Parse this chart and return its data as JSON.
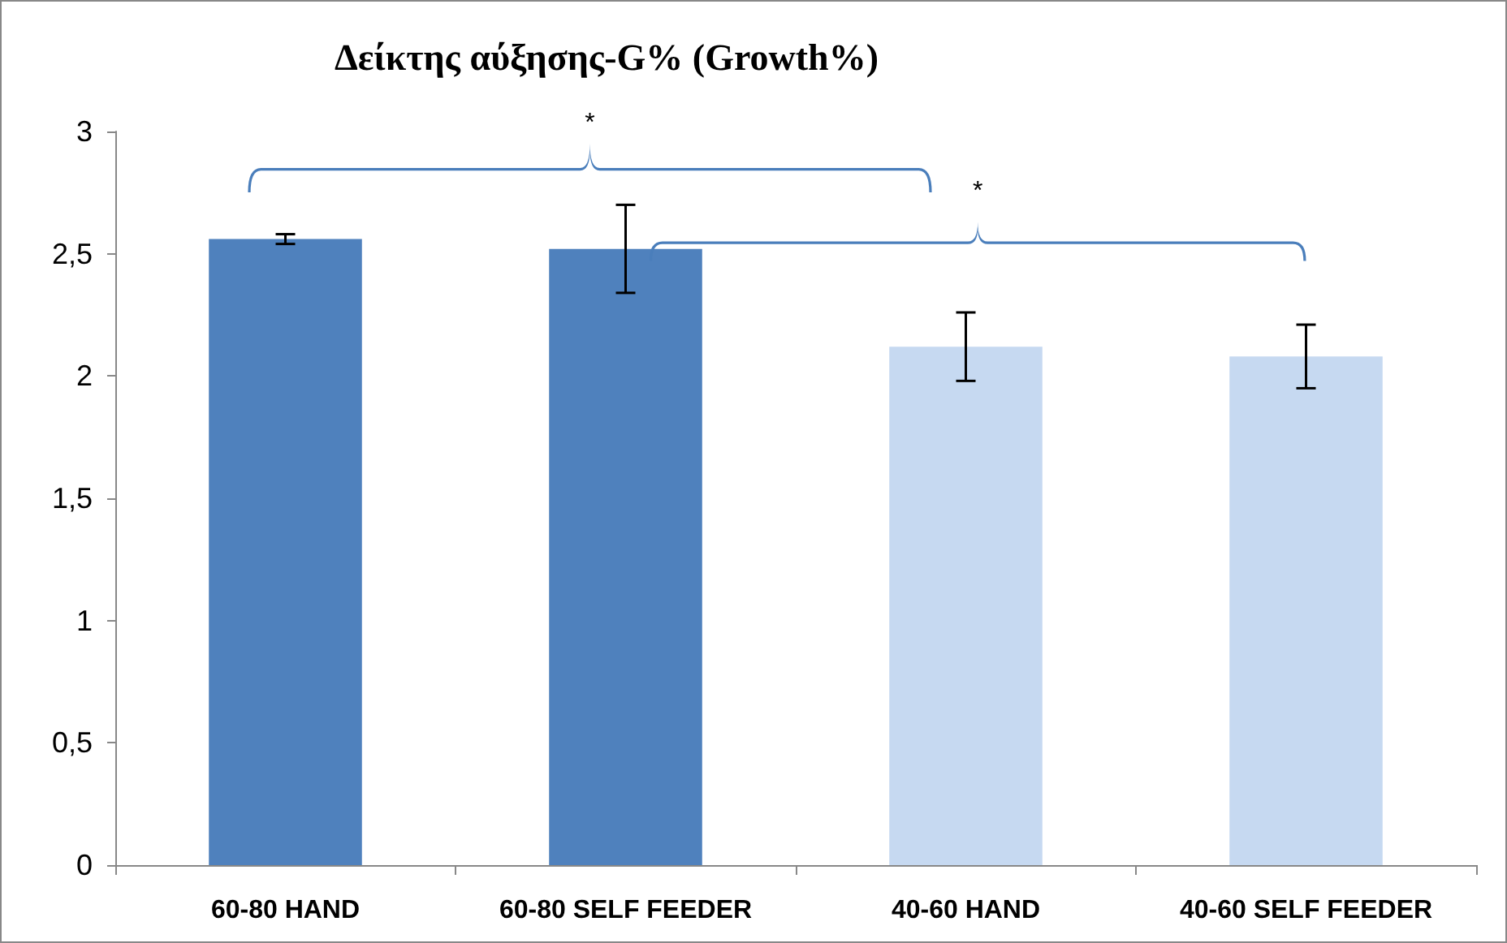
{
  "chart_data": {
    "type": "bar",
    "title": "Δείκτης αύξησης-G% (Growth%)",
    "categories": [
      "60-80 HAND",
      "60-80 SELF FEEDER",
      "40-60 HAND",
      "40-60 SELF FEEDER"
    ],
    "values": [
      2.56,
      2.52,
      2.12,
      2.08
    ],
    "errors": [
      0.02,
      0.18,
      0.14,
      0.13
    ],
    "colors": [
      "#4f81bd",
      "#4f81bd",
      "#c6d9f1",
      "#c6d9f1"
    ],
    "ylim": [
      0,
      3
    ],
    "yticks": [
      {
        "value": 0,
        "label": "0"
      },
      {
        "value": 0.5,
        "label": "0,5"
      },
      {
        "value": 1,
        "label": "1"
      },
      {
        "value": 1.5,
        "label": "1,5"
      },
      {
        "value": 2,
        "label": "2"
      },
      {
        "value": 2.5,
        "label": "2,5"
      },
      {
        "value": 3,
        "label": "3"
      }
    ],
    "annotations": [
      "*",
      "*"
    ]
  }
}
